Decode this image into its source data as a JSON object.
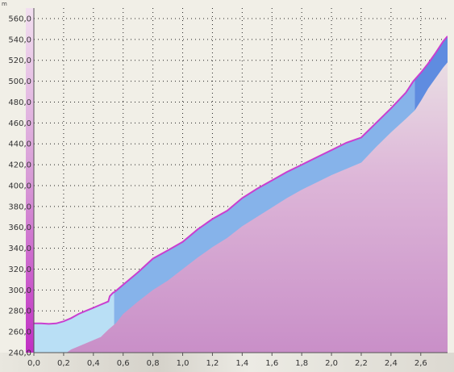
{
  "chart_data": {
    "type": "area",
    "y_unit": "m",
    "xlim": [
      0,
      2.78
    ],
    "ylim": [
      240,
      570
    ],
    "x_ticks": [
      "0,0",
      "0,2",
      "0,4",
      "0,6",
      "0,8",
      "1,0",
      "1,2",
      "1,4",
      "1,6",
      "1,8",
      "2,0",
      "2,2",
      "2,4",
      "2,6"
    ],
    "y_ticks": [
      "240,0",
      "260,0",
      "280,0",
      "300,0",
      "320,0",
      "340,0",
      "360,0",
      "380,0",
      "400,0",
      "420,0",
      "440,0",
      "460,0",
      "480,0",
      "500,0",
      "520,0",
      "540,0",
      "560,0"
    ],
    "grid": true,
    "elevation_profile": {
      "x": [
        0.0,
        0.05,
        0.1,
        0.15,
        0.2,
        0.25,
        0.3,
        0.35,
        0.4,
        0.45,
        0.5,
        0.51,
        0.53,
        0.55,
        0.6,
        0.7,
        0.8,
        0.9,
        1.0,
        1.1,
        1.2,
        1.3,
        1.4,
        1.5,
        1.6,
        1.7,
        1.8,
        1.9,
        2.0,
        2.1,
        2.2,
        2.3,
        2.4,
        2.5,
        2.55,
        2.6,
        2.65,
        2.7,
        2.75,
        2.78
      ],
      "y": [
        268,
        268,
        267.5,
        268,
        270,
        273,
        277,
        280,
        283,
        286,
        289,
        294,
        297,
        299,
        305,
        317,
        330,
        338,
        346,
        358,
        368,
        376,
        388,
        397,
        405,
        413,
        420,
        427,
        434,
        441,
        446,
        460,
        474,
        489,
        500,
        508,
        517,
        527,
        538,
        543
      ]
    },
    "bands": [
      {
        "name": "light",
        "color": "#b9dff5",
        "x_start": 0.0,
        "x_end": 0.54
      },
      {
        "name": "medium",
        "color": "#86b3ea",
        "x_start": 0.54,
        "x_end": 2.56
      },
      {
        "name": "dark",
        "color": "#5f8ce0",
        "x_start": 2.56,
        "x_end": 2.78
      }
    ],
    "band_lower_edge": {
      "x": [
        0.0,
        0.2,
        0.22,
        0.25,
        0.3,
        0.35,
        0.4,
        0.45,
        0.5,
        0.55,
        0.6,
        0.7,
        0.8,
        0.9,
        1.0,
        1.1,
        1.2,
        1.3,
        1.4,
        1.5,
        1.6,
        1.7,
        1.8,
        1.9,
        2.0,
        2.1,
        2.2,
        2.3,
        2.4,
        2.5,
        2.56,
        2.6,
        2.65,
        2.7,
        2.75,
        2.78
      ],
      "y": [
        232,
        238,
        240,
        243,
        246,
        249,
        252,
        255,
        262,
        268,
        277,
        289,
        300,
        309,
        320,
        331,
        341,
        350,
        361,
        370,
        379,
        388,
        396,
        403,
        410,
        416,
        422,
        437,
        451,
        464,
        472,
        481,
        493,
        503,
        513,
        518
      ]
    },
    "colors": {
      "profile_line": "#c93fd0",
      "terrain_fill": "#cfa0cf",
      "left_axis_gradient": "#c12fc4",
      "background": "#f1efe7"
    }
  }
}
